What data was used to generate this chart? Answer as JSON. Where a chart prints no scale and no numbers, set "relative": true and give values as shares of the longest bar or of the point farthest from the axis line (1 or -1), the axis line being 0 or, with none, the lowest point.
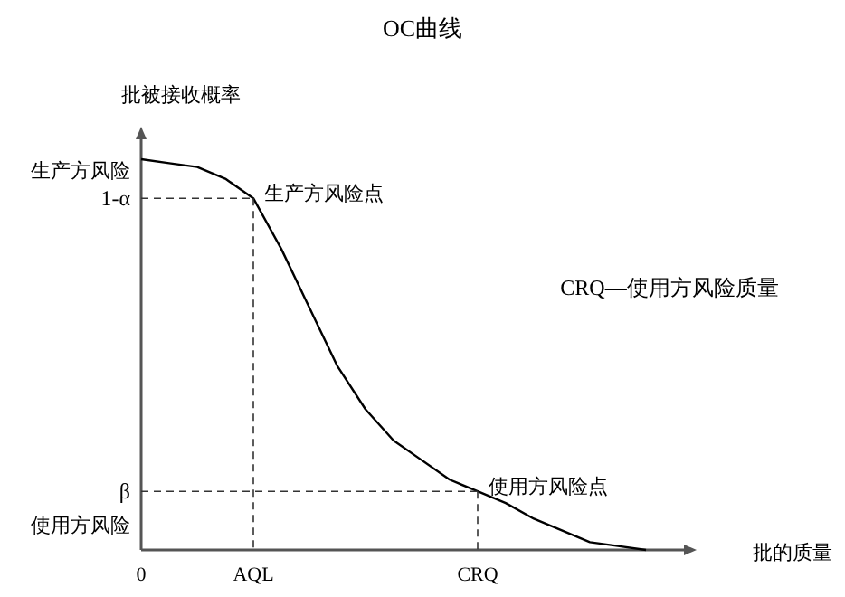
{
  "chart_data": {
    "type": "line",
    "title": "OC曲线",
    "xlabel": "批的质量",
    "ylabel": "批被接收概率",
    "relative": true,
    "tick_labels": "x",
    "categories": [
      "0",
      null,
      null,
      null,
      "AQL",
      null,
      null,
      null,
      null,
      null,
      null,
      null,
      "CRQ",
      null,
      null,
      null,
      null,
      null,
      null
    ],
    "series": [
      {
        "color": "#000000",
        "values": [
          1,
          0.99,
          0.98,
          0.95,
          0.9,
          0.77,
          0.62,
          0.47,
          0.36,
          0.28,
          0.23,
          0.18,
          0.15,
          0.12,
          0.08,
          0.05,
          0.02,
          0.01,
          0
        ]
      }
    ],
    "ref_lines": [
      {
        "axis": "y",
        "value": 0.9,
        "label": "1-α",
        "line_style": "dashed"
      },
      {
        "axis": "y",
        "value": 0.15,
        "label": "β",
        "line_style": "dashed"
      }
    ],
    "annotations": [
      "生产方风险",
      {
        "text": "生产方风险点",
        "x": "AQL",
        "y": 0.9
      },
      {
        "text": "使用方风险点",
        "x": "CRQ",
        "y": 0.15
      },
      "CRQ—使用方风险质量",
      "使用方风险"
    ]
  }
}
